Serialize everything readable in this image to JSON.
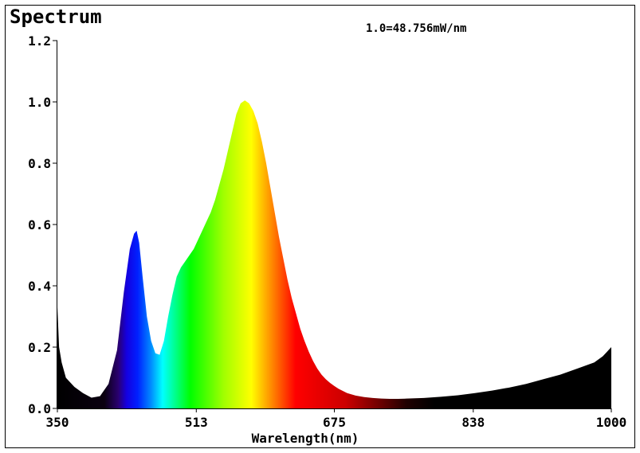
{
  "chart_data": {
    "type": "area",
    "title": "Spectrum",
    "annotation": "1.0=48.756mW/nm",
    "xlabel": "Warelength(nm)",
    "ylabel": "",
    "xlim": [
      350,
      1000
    ],
    "ylim": [
      0,
      1.2
    ],
    "x_ticks": [
      350,
      513,
      675,
      838,
      1000
    ],
    "x_tick_labels": [
      "350",
      "513",
      "675",
      "838",
      "1000"
    ],
    "y_ticks": [
      0,
      0.2,
      0.4,
      0.6,
      0.8,
      1.0,
      1.2
    ],
    "y_tick_labels": [
      "0.0",
      "0.2",
      "0.4",
      "0.6",
      "0.8",
      "1.0",
      "1.2"
    ],
    "grid": false,
    "fill": "visible-spectrum-gradient",
    "x": [
      350,
      352,
      355,
      360,
      370,
      380,
      390,
      400,
      410,
      420,
      428,
      435,
      440,
      443,
      446,
      450,
      455,
      460,
      465,
      470,
      475,
      480,
      485,
      490,
      495,
      500,
      505,
      510,
      515,
      520,
      525,
      530,
      535,
      540,
      545,
      550,
      555,
      560,
      565,
      570,
      575,
      580,
      585,
      590,
      595,
      600,
      605,
      610,
      615,
      620,
      625,
      630,
      635,
      640,
      645,
      650,
      655,
      660,
      665,
      670,
      675,
      680,
      690,
      700,
      710,
      720,
      730,
      740,
      750,
      760,
      780,
      800,
      820,
      840,
      860,
      880,
      900,
      920,
      940,
      960,
      980,
      990,
      1000
    ],
    "values": [
      0.33,
      0.2,
      0.15,
      0.1,
      0.07,
      0.05,
      0.035,
      0.04,
      0.08,
      0.19,
      0.38,
      0.52,
      0.57,
      0.58,
      0.54,
      0.43,
      0.3,
      0.22,
      0.18,
      0.175,
      0.22,
      0.3,
      0.37,
      0.43,
      0.46,
      0.48,
      0.5,
      0.52,
      0.55,
      0.58,
      0.61,
      0.64,
      0.68,
      0.73,
      0.78,
      0.84,
      0.9,
      0.96,
      0.995,
      1.005,
      0.995,
      0.97,
      0.93,
      0.87,
      0.8,
      0.72,
      0.64,
      0.56,
      0.49,
      0.42,
      0.36,
      0.31,
      0.26,
      0.22,
      0.185,
      0.155,
      0.13,
      0.11,
      0.095,
      0.083,
      0.073,
      0.064,
      0.05,
      0.042,
      0.037,
      0.034,
      0.032,
      0.031,
      0.031,
      0.032,
      0.034,
      0.038,
      0.043,
      0.05,
      0.058,
      0.068,
      0.08,
      0.095,
      0.11,
      0.13,
      0.15,
      0.17,
      0.2
    ]
  }
}
